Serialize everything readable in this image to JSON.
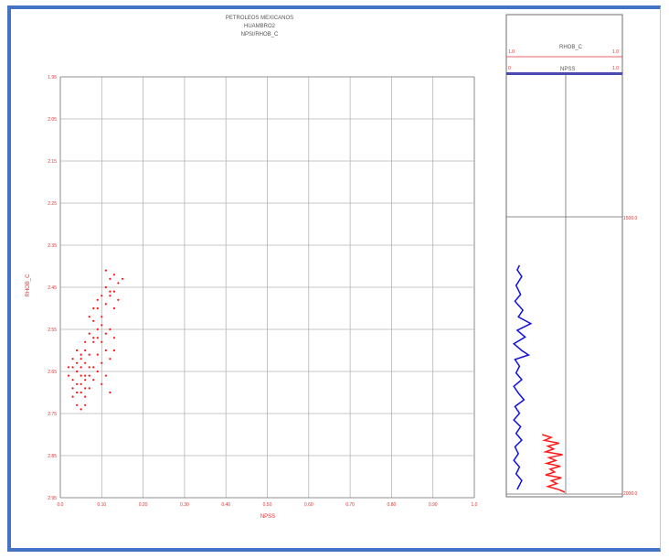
{
  "colors": {
    "frame": "#4472c4",
    "grid": "#b4b4b4",
    "axis": "#6e6e6e",
    "tick_label": "#e03030",
    "scatter": "#ff1010",
    "npss_track": "#1010e0",
    "rhob_track": "#ff1a1a"
  },
  "chart_data": [
    {
      "type": "scatter",
      "title": "PETROLEOS MEXICANOS",
      "subtitle_lines": [
        "HUAMBRO2",
        "NPSI/RHOB_C"
      ],
      "xlabel": "NPSS",
      "ylabel": "RHOB_C",
      "xlim": [
        0.0,
        1.0
      ],
      "ylim": [
        1.95,
        2.95
      ],
      "y_inverted": true,
      "grid": true,
      "x_ticks": [
        "0.0",
        "0.10",
        "0.20",
        "0.30",
        "0.40",
        "0.50",
        "0.60",
        "0.70",
        "0.80",
        "0.90",
        "1.0"
      ],
      "y_ticks": [
        "1.95",
        "2.05",
        "2.15",
        "2.25",
        "2.35",
        "2.45",
        "2.55",
        "2.65",
        "2.75",
        "2.85",
        "2.95"
      ],
      "series": [
        {
          "points": [
            [
              0.03,
              2.64
            ],
            [
              0.04,
              2.65
            ],
            [
              0.05,
              2.66
            ],
            [
              0.03,
              2.67
            ],
            [
              0.04,
              2.68
            ],
            [
              0.06,
              2.66
            ],
            [
              0.05,
              2.64
            ],
            [
              0.02,
              2.66
            ],
            [
              0.04,
              2.7
            ],
            [
              0.06,
              2.69
            ],
            [
              0.05,
              2.62
            ],
            [
              0.07,
              2.61
            ],
            [
              0.06,
              2.63
            ],
            [
              0.03,
              2.69
            ],
            [
              0.04,
              2.63
            ],
            [
              0.05,
              2.68
            ],
            [
              0.07,
              2.66
            ],
            [
              0.08,
              2.64
            ],
            [
              0.06,
              2.6
            ],
            [
              0.08,
              2.58
            ],
            [
              0.07,
              2.56
            ],
            [
              0.09,
              2.55
            ],
            [
              0.08,
              2.53
            ],
            [
              0.1,
              2.52
            ],
            [
              0.09,
              2.5
            ],
            [
              0.11,
              2.49
            ],
            [
              0.1,
              2.47
            ],
            [
              0.12,
              2.46
            ],
            [
              0.11,
              2.45
            ],
            [
              0.12,
              2.43
            ],
            [
              0.13,
              2.42
            ],
            [
              0.11,
              2.41
            ],
            [
              0.12,
              2.47
            ],
            [
              0.1,
              2.54
            ],
            [
              0.09,
              2.57
            ],
            [
              0.11,
              2.56
            ],
            [
              0.08,
              2.5
            ],
            [
              0.07,
              2.52
            ],
            [
              0.13,
              2.5
            ],
            [
              0.12,
              2.55
            ],
            [
              0.13,
              2.57
            ],
            [
              0.12,
              2.62
            ],
            [
              0.11,
              2.66
            ],
            [
              0.12,
              2.7
            ],
            [
              0.13,
              2.6
            ],
            [
              0.04,
              2.73
            ],
            [
              0.05,
              2.74
            ],
            [
              0.06,
              2.73
            ],
            [
              0.05,
              2.61
            ],
            [
              0.03,
              2.62
            ],
            [
              0.02,
              2.64
            ],
            [
              0.06,
              2.67
            ],
            [
              0.07,
              2.64
            ],
            [
              0.04,
              2.6
            ],
            [
              0.09,
              2.61
            ],
            [
              0.1,
              2.58
            ],
            [
              0.14,
              2.44
            ],
            [
              0.15,
              2.43
            ],
            [
              0.14,
              2.48
            ],
            [
              0.13,
              2.46
            ],
            [
              0.09,
              2.48
            ],
            [
              0.08,
              2.57
            ],
            [
              0.06,
              2.58
            ],
            [
              0.05,
              2.7
            ],
            [
              0.03,
              2.71
            ],
            [
              0.07,
              2.69
            ],
            [
              0.08,
              2.67
            ],
            [
              0.09,
              2.65
            ],
            [
              0.1,
              2.63
            ],
            [
              0.11,
              2.6
            ],
            [
              0.1,
              2.68
            ],
            [
              0.06,
              2.71
            ]
          ]
        }
      ]
    },
    {
      "type": "line",
      "tracks": [
        {
          "name": "RHOB_C",
          "min_label": "1.0",
          "max_label": "1.0"
        },
        {
          "name": "NPSS",
          "min_label": "0",
          "max_label": "1.0"
        }
      ],
      "depth_markers": [
        "1500.0",
        "2000.0"
      ],
      "npss_series": [
        [
          0.1,
          0.0
        ],
        [
          0.08,
          0.02
        ],
        [
          0.12,
          0.05
        ],
        [
          0.07,
          0.09
        ],
        [
          0.11,
          0.13
        ],
        [
          0.06,
          0.16
        ],
        [
          0.13,
          0.2
        ],
        [
          0.09,
          0.23
        ],
        [
          0.2,
          0.26
        ],
        [
          0.08,
          0.29
        ],
        [
          0.15,
          0.32
        ],
        [
          0.05,
          0.35
        ],
        [
          0.12,
          0.38
        ],
        [
          0.18,
          0.4
        ],
        [
          0.06,
          0.42
        ],
        [
          0.1,
          0.45
        ],
        [
          0.07,
          0.48
        ],
        [
          0.12,
          0.51
        ],
        [
          0.05,
          0.54
        ],
        [
          0.09,
          0.57
        ],
        [
          0.14,
          0.6
        ],
        [
          0.06,
          0.63
        ],
        [
          0.1,
          0.66
        ],
        [
          0.05,
          0.69
        ],
        [
          0.11,
          0.72
        ],
        [
          0.07,
          0.75
        ],
        [
          0.12,
          0.78
        ],
        [
          0.06,
          0.81
        ],
        [
          0.09,
          0.84
        ],
        [
          0.05,
          0.87
        ],
        [
          0.1,
          0.9
        ],
        [
          0.07,
          0.93
        ],
        [
          0.12,
          0.96
        ],
        [
          0.08,
          1.0
        ]
      ],
      "rhob_series": [
        [
          0.3,
          0.0
        ],
        [
          0.38,
          0.05
        ],
        [
          0.32,
          0.1
        ],
        [
          0.45,
          0.15
        ],
        [
          0.35,
          0.2
        ],
        [
          0.4,
          0.25
        ],
        [
          0.33,
          0.3
        ],
        [
          0.48,
          0.35
        ],
        [
          0.36,
          0.4
        ],
        [
          0.42,
          0.45
        ],
        [
          0.34,
          0.5
        ],
        [
          0.46,
          0.55
        ],
        [
          0.37,
          0.6
        ],
        [
          0.41,
          0.65
        ],
        [
          0.33,
          0.7
        ],
        [
          0.47,
          0.75
        ],
        [
          0.38,
          0.8
        ],
        [
          0.43,
          0.85
        ],
        [
          0.35,
          0.9
        ],
        [
          0.44,
          0.95
        ],
        [
          0.5,
          1.0
        ]
      ]
    }
  ]
}
